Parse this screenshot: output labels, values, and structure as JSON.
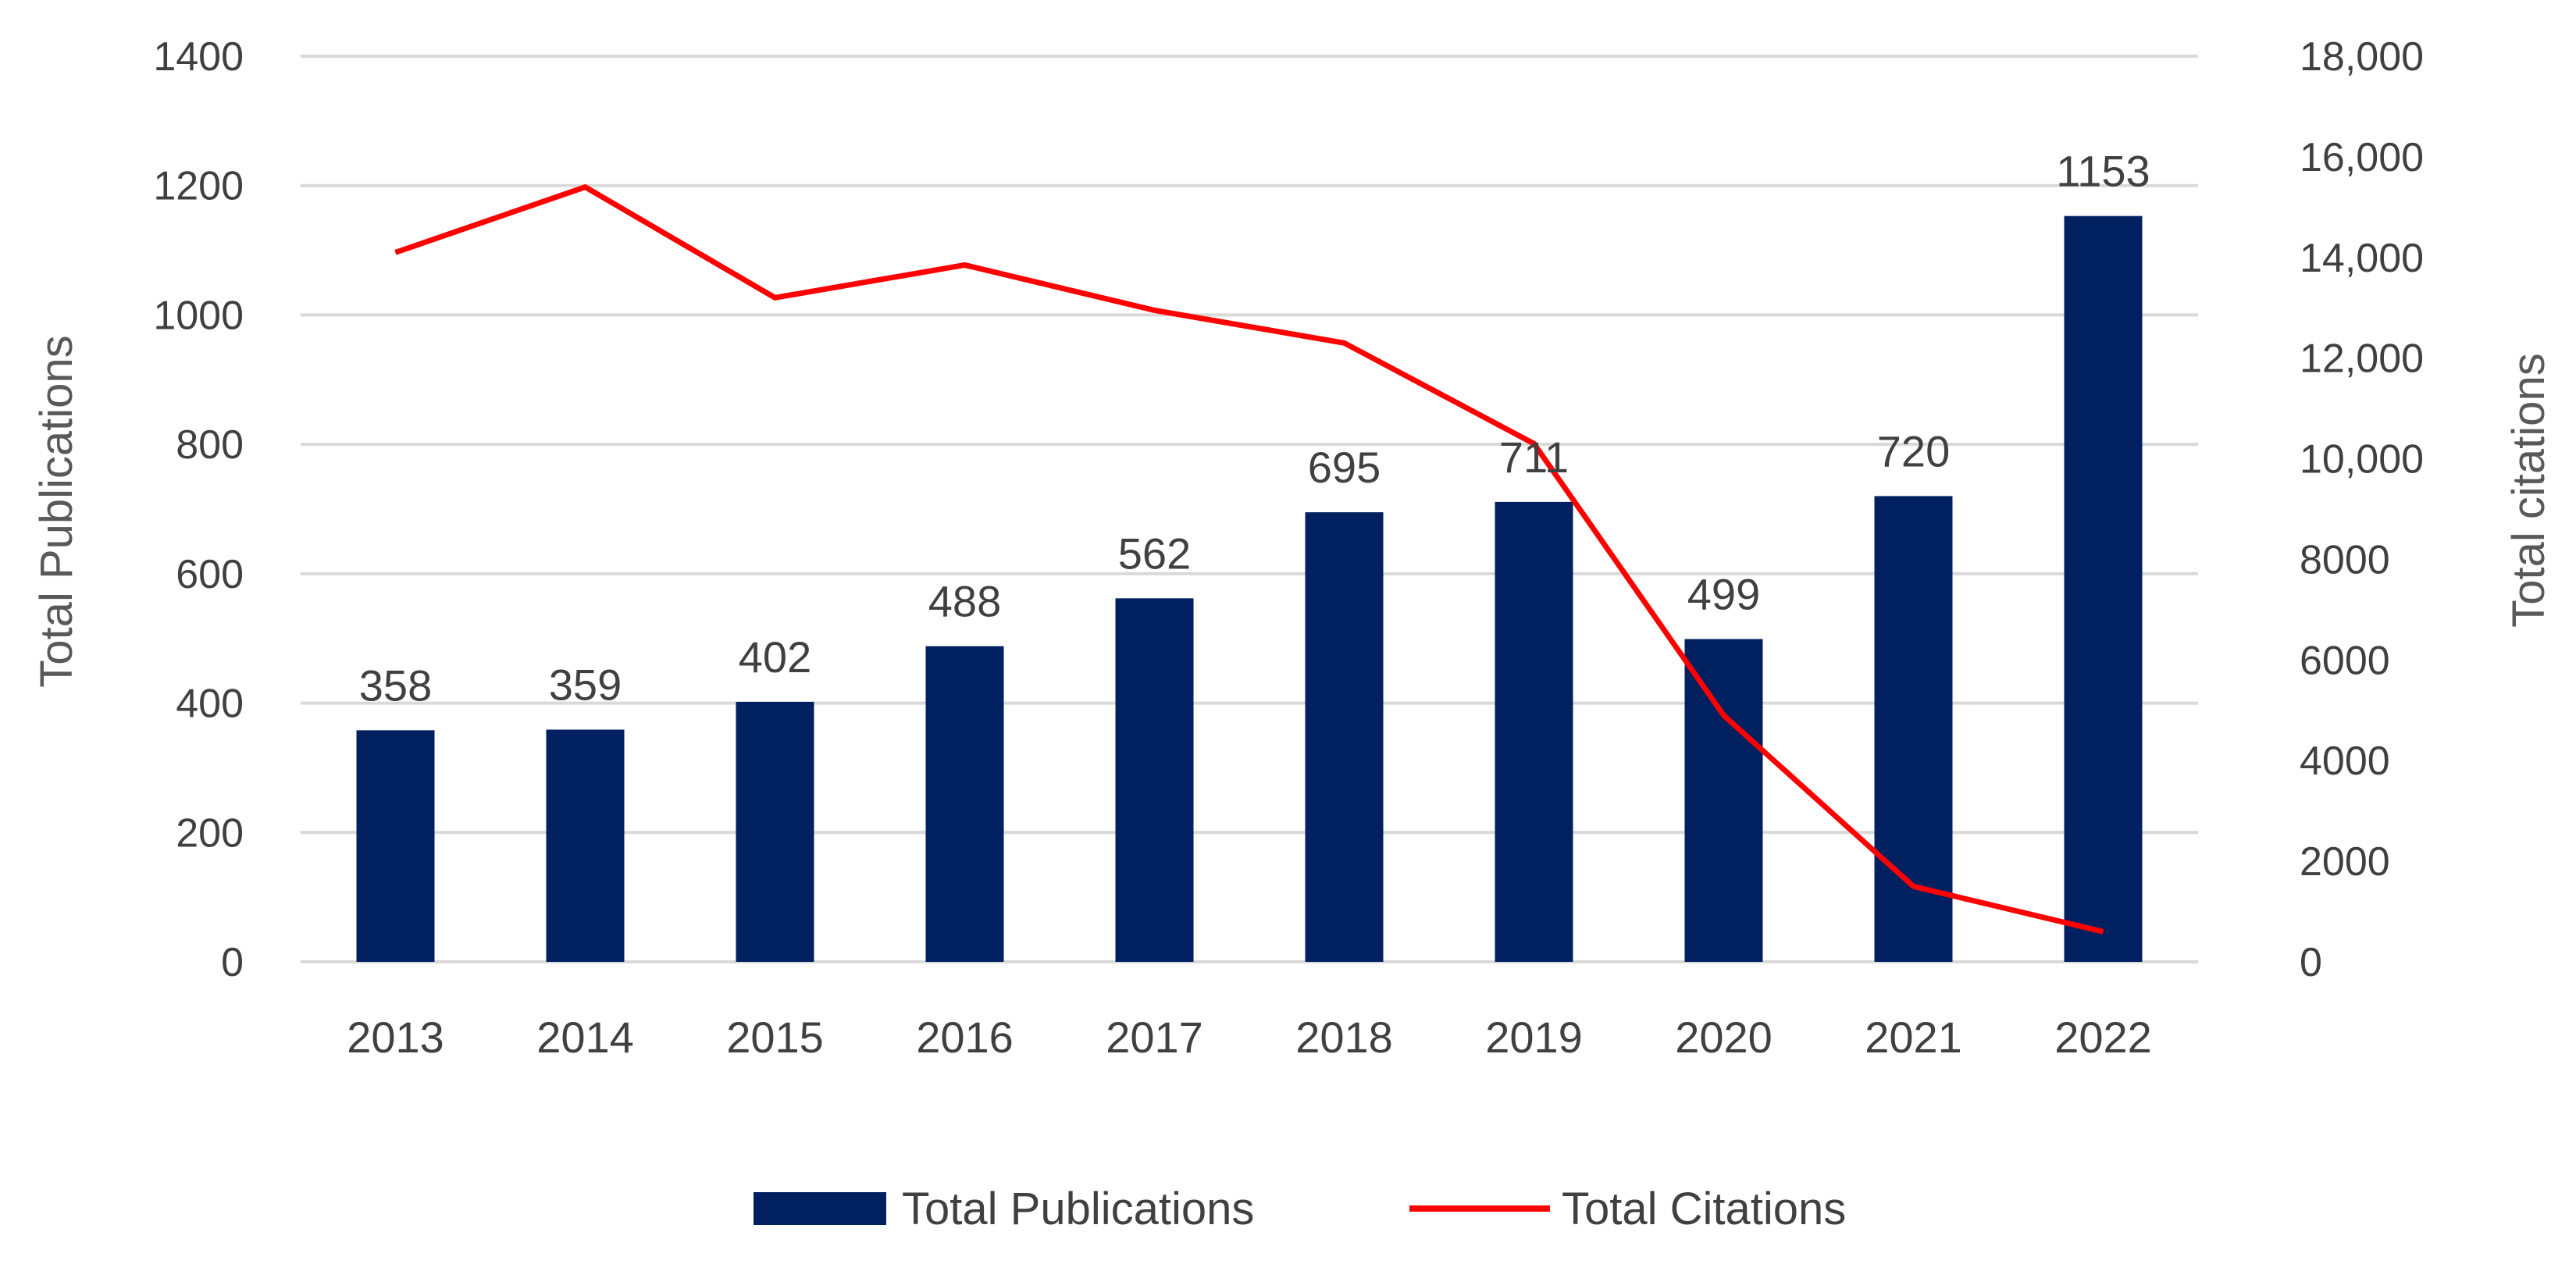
{
  "chart_data": {
    "type": "bar+line",
    "categories": [
      "2013",
      "2014",
      "2015",
      "2016",
      "2017",
      "2018",
      "2019",
      "2020",
      "2021",
      "2022"
    ],
    "series": [
      {
        "name": "Total Publications",
        "type": "bar",
        "axis": "left",
        "color": "#002060",
        "values": [
          358,
          359,
          402,
          488,
          562,
          695,
          711,
          499,
          720,
          1153
        ],
        "labels": [
          "358",
          "359",
          "402",
          "488",
          "562",
          "695",
          "711",
          "499",
          "720",
          "1153"
        ]
      },
      {
        "name": "Total Citations",
        "type": "line",
        "axis": "right",
        "color": "#ff0000",
        "values": [
          14100,
          15400,
          13200,
          13850,
          12950,
          12300,
          10300,
          4900,
          1500,
          600
        ]
      }
    ],
    "y_left": {
      "label": "Total Publications",
      "lim": [
        0,
        1400
      ],
      "ticks": [
        0,
        200,
        400,
        600,
        800,
        1000,
        1200,
        1400
      ],
      "tick_labels": [
        "0",
        "200",
        "400",
        "600",
        "800",
        "1000",
        "1200",
        "1400"
      ]
    },
    "y_right": {
      "label": "Total citations",
      "lim": [
        0,
        18000
      ],
      "ticks": [
        0,
        2000,
        4000,
        6000,
        8000,
        10000,
        12000,
        14000,
        16000,
        18000
      ],
      "tick_labels": [
        "0",
        "2000",
        "4000",
        "6000",
        "8000",
        "10,000",
        "12,000",
        "14,000",
        "16,000",
        "18,000"
      ]
    },
    "grid": true,
    "grid_color": "#d9d9d9",
    "legend_position": "bottom",
    "legend": [
      "Total Publications",
      "Total Citations"
    ]
  }
}
